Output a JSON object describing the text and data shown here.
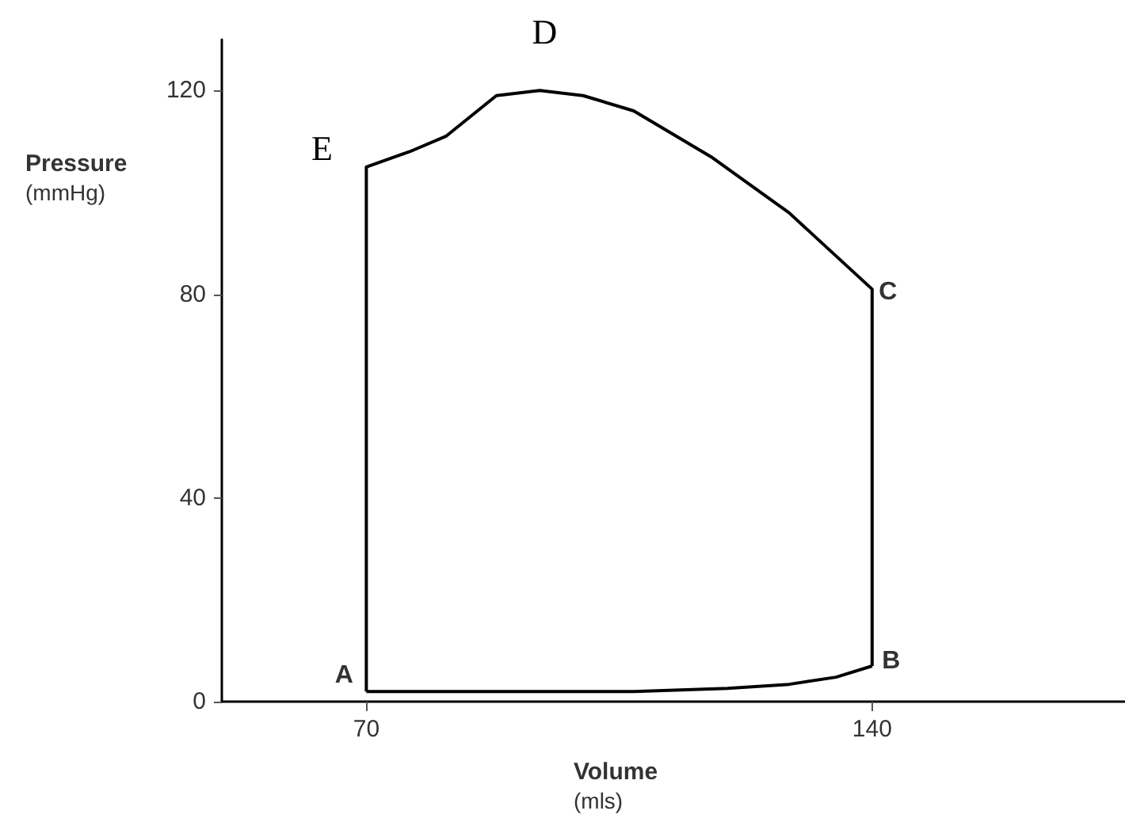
{
  "chart_data": {
    "type": "line",
    "xlabel": "Volume\n(mls)",
    "ylabel": "Pressure\n(mmHg)",
    "series": [
      {
        "color": "#000000",
        "x": [
          70,
          90,
          107,
          120,
          128.5,
          135,
          140
        ],
        "values": [
          2,
          2,
          2,
          2.6,
          3.4,
          4.8,
          7
        ]
      },
      {
        "color": "#000000",
        "x": [
          70,
          70,
          76,
          81,
          88,
          94,
          100,
          107,
          117.7,
          128.5,
          140,
          140
        ],
        "values": [
          2,
          105,
          108,
          111,
          119,
          120,
          119,
          116,
          107,
          96,
          81,
          7
        ]
      }
    ],
    "xlim": [
      50,
      175
    ],
    "xticks": [
      70,
      140
    ],
    "ylim": [
      0,
      130
    ],
    "yticks": [
      0,
      40,
      80,
      120
    ],
    "grid": false,
    "marker": "none",
    "line_style": "solid",
    "annotations": [
      {
        "text": "A",
        "x": 70,
        "y": 2
      },
      {
        "text": "B",
        "x": 140,
        "y": 7
      },
      {
        "text": "C",
        "x": 140,
        "y": 81
      },
      {
        "text": "D",
        "x": 94,
        "y": 120
      },
      {
        "text": "E",
        "x": 70,
        "y": 105
      }
    ]
  }
}
